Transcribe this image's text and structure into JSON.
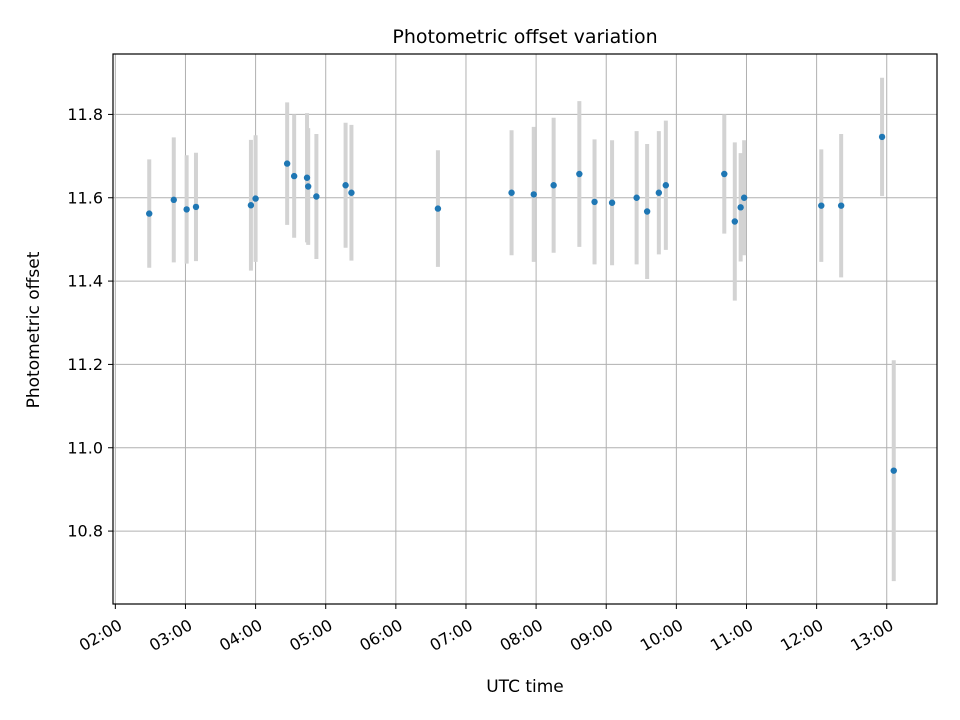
{
  "chart_data": {
    "type": "scatter",
    "title": "Photometric offset variation",
    "xlabel": "UTC time",
    "ylabel": "Photometric offset",
    "x_ticks": [
      "02:00",
      "03:00",
      "04:00",
      "05:00",
      "06:00",
      "07:00",
      "08:00",
      "09:00",
      "10:00",
      "11:00",
      "12:00",
      "13:00"
    ],
    "x_tick_values": [
      "02:00",
      "03:00",
      "04:00",
      "05:00",
      "06:00",
      "07:00",
      "08:00",
      "09:00",
      "10:00",
      "11:00",
      "12:00",
      "13:00"
    ],
    "xlim": [
      "01:58",
      "13:43"
    ],
    "y_ticks": [
      "10.8",
      "11.0",
      "11.2",
      "11.4",
      "11.6",
      "11.8"
    ],
    "y_tick_values": [
      10.8,
      11.0,
      11.2,
      11.4,
      11.6,
      11.8
    ],
    "ylim": [
      10.625,
      11.945
    ],
    "grid": true,
    "colors": {
      "point": "#1f77b4",
      "errorbar": "#d3d3d3",
      "grid": "#b0b0b0"
    },
    "points": [
      {
        "x": "02:29",
        "y": 11.562,
        "err": 0.13
      },
      {
        "x": "02:50",
        "y": 11.595,
        "err": 0.15
      },
      {
        "x": "03:01",
        "y": 11.572,
        "err": 0.13
      },
      {
        "x": "03:09",
        "y": 11.578,
        "err": 0.13
      },
      {
        "x": "03:56",
        "y": 11.582,
        "err": 0.157
      },
      {
        "x": "04:00",
        "y": 11.598,
        "err": 0.152
      },
      {
        "x": "04:27",
        "y": 11.682,
        "err": 0.147
      },
      {
        "x": "04:33",
        "y": 11.652,
        "err": 0.148
      },
      {
        "x": "04:44",
        "y": 11.648,
        "err": 0.155
      },
      {
        "x": "04:45",
        "y": 11.627,
        "err": 0.14
      },
      {
        "x": "04:52",
        "y": 11.603,
        "err": 0.15
      },
      {
        "x": "05:17",
        "y": 11.63,
        "err": 0.15
      },
      {
        "x": "05:22",
        "y": 11.612,
        "err": 0.163
      },
      {
        "x": "06:36",
        "y": 11.574,
        "err": 0.14
      },
      {
        "x": "07:39",
        "y": 11.612,
        "err": 0.15
      },
      {
        "x": "07:58",
        "y": 11.608,
        "err": 0.162
      },
      {
        "x": "08:15",
        "y": 11.63,
        "err": 0.162
      },
      {
        "x": "08:37",
        "y": 11.657,
        "err": 0.175
      },
      {
        "x": "08:50",
        "y": 11.59,
        "err": 0.15
      },
      {
        "x": "09:05",
        "y": 11.588,
        "err": 0.15
      },
      {
        "x": "09:26",
        "y": 11.6,
        "err": 0.16
      },
      {
        "x": "09:35",
        "y": 11.567,
        "err": 0.162
      },
      {
        "x": "09:45",
        "y": 11.612,
        "err": 0.148
      },
      {
        "x": "09:51",
        "y": 11.63,
        "err": 0.155
      },
      {
        "x": "10:41",
        "y": 11.657,
        "err": 0.143
      },
      {
        "x": "10:50",
        "y": 11.543,
        "err": 0.19
      },
      {
        "x": "10:55",
        "y": 11.577,
        "err": 0.13
      },
      {
        "x": "10:58",
        "y": 11.6,
        "err": 0.138
      },
      {
        "x": "12:04",
        "y": 11.581,
        "err": 0.135
      },
      {
        "x": "12:21",
        "y": 11.581,
        "err": 0.172
      },
      {
        "x": "12:56",
        "y": 11.746,
        "err": 0.142
      },
      {
        "x": "13:06",
        "y": 10.945,
        "err": 0.265
      }
    ]
  }
}
